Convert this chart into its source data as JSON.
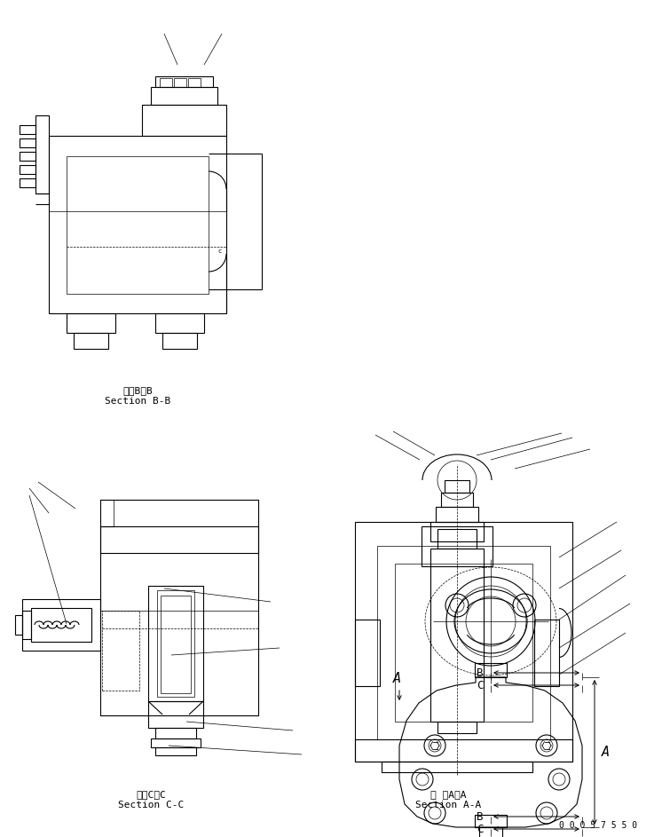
{
  "bg_color": "#ffffff",
  "lc": "#000000",
  "lw": 0.8,
  "lt": 0.5,
  "fig_w": 7.46,
  "fig_h": 9.43,
  "dpi": 100,
  "label_bb_1": "断面B－B",
  "label_bb_2": "Section B-B",
  "label_cc_1": "断面C－C",
  "label_cc_2": "Section C-C",
  "label_aa_1": "断 面A－A",
  "label_aa_2": "Section A-A",
  "part_number": "0 0 0 5 7 5 5 0"
}
